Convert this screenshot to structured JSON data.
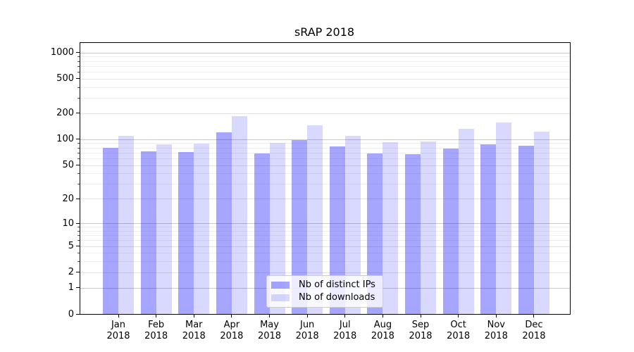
{
  "title": "sRAP 2018",
  "chart_data": {
    "type": "bar",
    "title": "sRAP 2018",
    "xlabel": "",
    "ylabel": "",
    "yscale": "symlog (positions follow log10(1+value))",
    "ylim": [
      0,
      1280
    ],
    "grid": true,
    "legend_position": "lower center",
    "y_ticks": [
      0,
      1,
      2,
      5,
      10,
      20,
      50,
      100,
      200,
      500,
      1000
    ],
    "categories": [
      "Jan 2018",
      "Feb 2018",
      "Mar 2018",
      "Apr 2018",
      "May 2018",
      "Jun 2018",
      "Jul 2018",
      "Aug 2018",
      "Sep 2018",
      "Oct 2018",
      "Nov 2018",
      "Dec 2018"
    ],
    "months": [
      {
        "label": "Jan",
        "year": "2018"
      },
      {
        "label": "Feb",
        "year": "2018"
      },
      {
        "label": "Mar",
        "year": "2018"
      },
      {
        "label": "Apr",
        "year": "2018"
      },
      {
        "label": "May",
        "year": "2018"
      },
      {
        "label": "Jun",
        "year": "2018"
      },
      {
        "label": "Jul",
        "year": "2018"
      },
      {
        "label": "Aug",
        "year": "2018"
      },
      {
        "label": "Sep",
        "year": "2018"
      },
      {
        "label": "Oct",
        "year": "2018"
      },
      {
        "label": "Nov",
        "year": "2018"
      },
      {
        "label": "Dec",
        "year": "2018"
      }
    ],
    "series": [
      {
        "name": "Nb of distinct IPs",
        "key": "distinct-ips",
        "color": "rgba(0,0,255,0.35)",
        "values": [
          79,
          73,
          71,
          120,
          68,
          97,
          82,
          69,
          67,
          78,
          88,
          85
        ]
      },
      {
        "name": "Nb of downloads",
        "key": "downloads",
        "color": "rgba(0,0,255,0.15)",
        "values": [
          109,
          88,
          89,
          185,
          90,
          144,
          110,
          92,
          95,
          131,
          156,
          122
        ]
      }
    ]
  }
}
